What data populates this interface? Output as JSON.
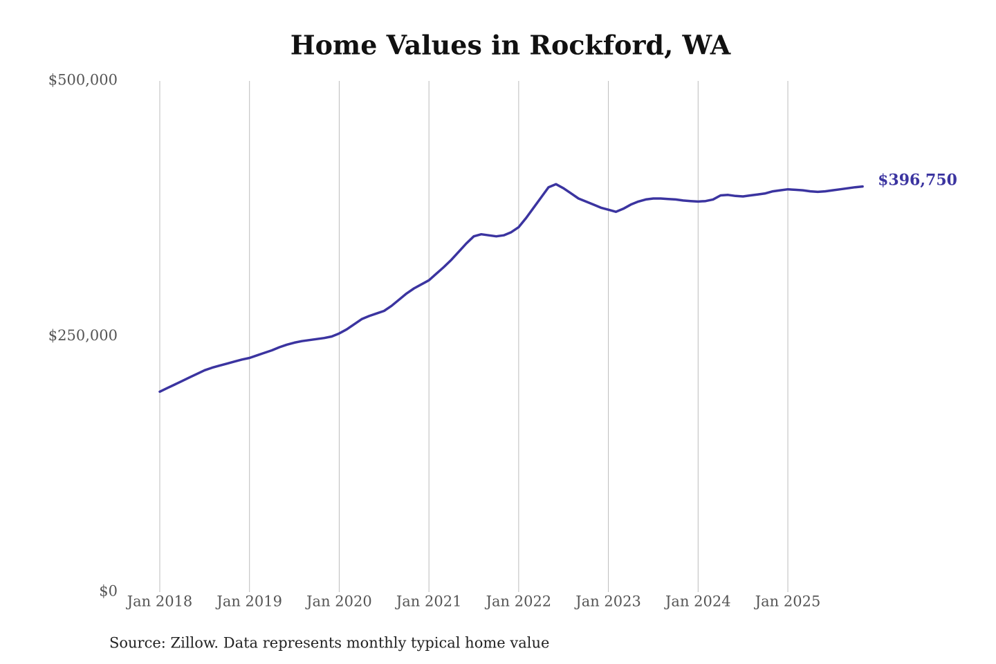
{
  "chart_data": {
    "type": "line",
    "title": "Home Values in Rockford, WA",
    "source": "Source: Zillow. Data represents monthly typical home value",
    "x": [
      "Jan 2018",
      "Feb 2018",
      "Mar 2018",
      "Apr 2018",
      "May 2018",
      "Jun 2018",
      "Jul 2018",
      "Aug 2018",
      "Sep 2018",
      "Oct 2018",
      "Nov 2018",
      "Dec 2018",
      "Jan 2019",
      "Feb 2019",
      "Mar 2019",
      "Apr 2019",
      "May 2019",
      "Jun 2019",
      "Jul 2019",
      "Aug 2019",
      "Sep 2019",
      "Oct 2019",
      "Nov 2019",
      "Dec 2019",
      "Jan 2020",
      "Feb 2020",
      "Mar 2020",
      "Apr 2020",
      "May 2020",
      "Jun 2020",
      "Jul 2020",
      "Aug 2020",
      "Sep 2020",
      "Oct 2020",
      "Nov 2020",
      "Dec 2020",
      "Jan 2021",
      "Feb 2021",
      "Mar 2021",
      "Apr 2021",
      "May 2021",
      "Jun 2021",
      "Jul 2021",
      "Aug 2021",
      "Sep 2021",
      "Oct 2021",
      "Nov 2021",
      "Dec 2021",
      "Jan 2022",
      "Feb 2022",
      "Mar 2022",
      "Apr 2022",
      "May 2022",
      "Jun 2022",
      "Jul 2022",
      "Aug 2022",
      "Sep 2022",
      "Oct 2022",
      "Nov 2022",
      "Dec 2022",
      "Jan 2023",
      "Feb 2023",
      "Mar 2023",
      "Apr 2023",
      "May 2023",
      "Jun 2023",
      "Jul 2023",
      "Aug 2023",
      "Sep 2023",
      "Oct 2023",
      "Nov 2023",
      "Dec 2023",
      "Jan 2024",
      "Feb 2024",
      "Mar 2024",
      "Apr 2024",
      "May 2024",
      "Jun 2024",
      "Jul 2024",
      "Aug 2024",
      "Sep 2024",
      "Oct 2024",
      "Nov 2024",
      "Dec 2024",
      "Jan 2025",
      "Feb 2025",
      "Mar 2025",
      "Apr 2025",
      "May 2025",
      "Jun 2025",
      "Jul 2025",
      "Aug 2025",
      "Sep 2025",
      "Oct 2025",
      "Nov 2025"
    ],
    "series": [
      {
        "color": "#3b34a0",
        "values": [
          196000,
          199500,
          203000,
          206500,
          210000,
          213500,
          217000,
          219500,
          221500,
          223500,
          225500,
          227500,
          229000,
          231500,
          234000,
          236500,
          239500,
          242000,
          244000,
          245500,
          246500,
          247500,
          248500,
          250000,
          253000,
          257000,
          262000,
          267000,
          270000,
          272500,
          275000,
          280000,
          286000,
          292000,
          297000,
          301000,
          305000,
          311500,
          318000,
          325000,
          333000,
          341000,
          348000,
          350000,
          349000,
          348000,
          349000,
          352000,
          357000,
          366000,
          376000,
          386000,
          396000,
          399000,
          395000,
          390000,
          385000,
          382000,
          379000,
          376000,
          374000,
          372000,
          375000,
          379000,
          382000,
          384000,
          385000,
          385000,
          384500,
          384000,
          383000,
          382500,
          382000,
          382500,
          384000,
          388000,
          388500,
          387500,
          387000,
          388000,
          389000,
          390000,
          392000,
          393000,
          394000,
          393500,
          393000,
          392000,
          391500,
          392000,
          393000,
          394000,
          395000,
          396000,
          396750
        ],
        "value_labels": [
          null,
          null,
          null,
          null,
          null,
          null,
          null,
          null,
          null,
          null,
          null,
          null,
          null,
          null,
          null,
          null,
          null,
          null,
          null,
          null,
          null,
          null,
          null,
          null,
          null,
          null,
          null,
          null,
          null,
          null,
          null,
          null,
          null,
          null,
          null,
          null,
          null,
          null,
          null,
          null,
          null,
          null,
          null,
          null,
          null,
          null,
          null,
          null,
          null,
          null,
          null,
          null,
          null,
          null,
          null,
          null,
          null,
          null,
          null,
          null,
          null,
          null,
          null,
          null,
          null,
          null,
          null,
          null,
          null,
          null,
          null,
          null,
          null,
          null,
          null,
          null,
          null,
          null,
          null,
          null,
          null,
          null,
          null,
          null,
          null,
          null,
          null,
          null,
          null,
          null,
          null,
          null,
          null,
          null,
          "$396,750"
        ]
      }
    ],
    "xticks": [
      "Jan 2018",
      "Jan 2019",
      "Jan 2020",
      "Jan 2021",
      "Jan 2022",
      "Jan 2023",
      "Jan 2024",
      "Jan 2025"
    ],
    "ylim": [
      0,
      500000
    ],
    "yticks": [
      {
        "value": 0,
        "label": "$0"
      },
      {
        "value": 250000,
        "label": "$250,000"
      },
      {
        "value": 500000,
        "label": "$500,000"
      }
    ],
    "grid": "x"
  }
}
